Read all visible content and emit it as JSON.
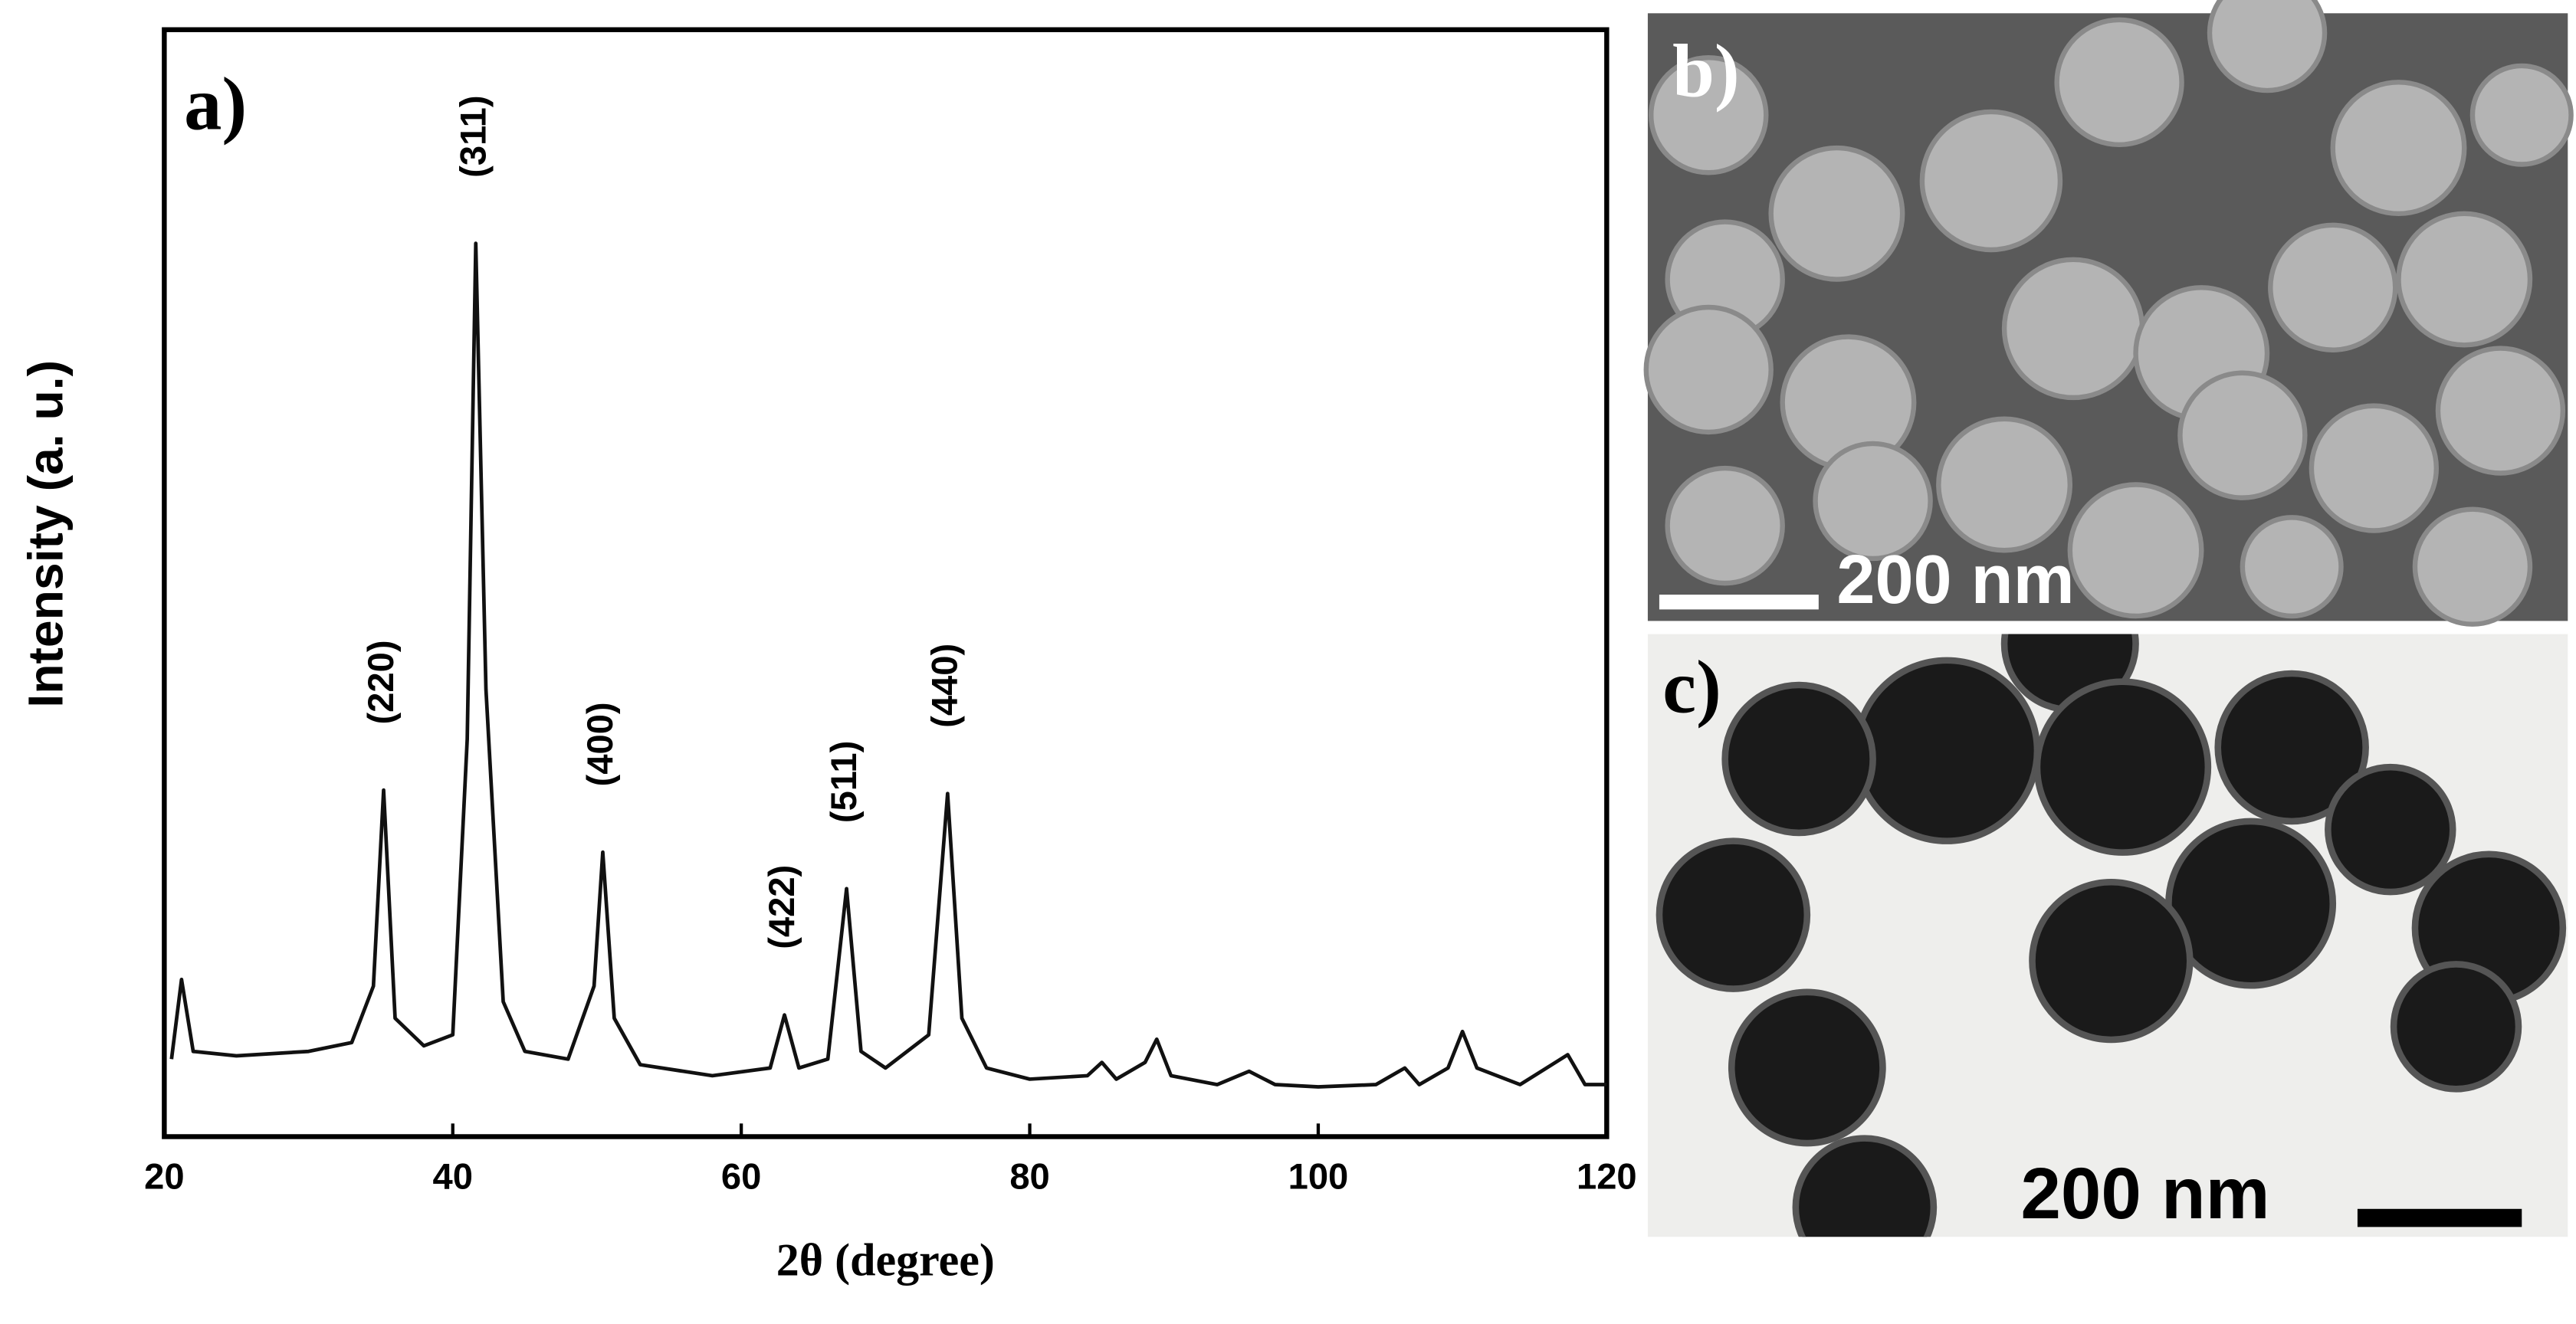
{
  "chart_data": {
    "type": "line",
    "panel_label": "a)",
    "x_label": "2θ (degree)",
    "y_label": "Intensity (a. u.)",
    "color": "#111111",
    "x": [
      20.5,
      21.2,
      22,
      25,
      30,
      33,
      34.5,
      35.2,
      36,
      38,
      40,
      41.0,
      41.6,
      42.3,
      43.5,
      45,
      48,
      49.8,
      50.4,
      51.2,
      53,
      58,
      62,
      63.0,
      64,
      66,
      67.3,
      68.3,
      70,
      73,
      74.3,
      75.3,
      77,
      80,
      84,
      85,
      86,
      88,
      88.8,
      89.8,
      93,
      95.2,
      97,
      100,
      104,
      106,
      107,
      109,
      110,
      111,
      114,
      117.3,
      118.5,
      120
    ],
    "values": [
      7.0,
      14.2,
      7.7,
      7.3,
      7.7,
      8.5,
      13.6,
      31.3,
      10.7,
      8.2,
      9.2,
      35.9,
      80.7,
      40.4,
      12.2,
      7.7,
      7.0,
      13.6,
      25.7,
      10.7,
      6.5,
      5.5,
      6.2,
      11.0,
      6.2,
      7.0,
      22.4,
      7.7,
      6.2,
      9.2,
      31.0,
      10.7,
      6.2,
      5.2,
      5.5,
      6.7,
      5.2,
      6.7,
      8.8,
      5.5,
      4.7,
      5.9,
      4.7,
      4.5,
      4.7,
      6.2,
      4.7,
      6.2,
      9.5,
      6.2,
      4.7,
      7.4,
      4.7,
      4.7
    ],
    "xlim": [
      20,
      120
    ],
    "xticks": [
      20,
      40,
      60,
      80,
      100,
      120
    ],
    "ylim": [
      0,
      100
    ],
    "annotations": [
      {
        "text": "(220)",
        "x": 35.2
      },
      {
        "text": "(311)",
        "x": 41.6
      },
      {
        "text": "(400)",
        "x": 50.4
      },
      {
        "text": "(422)",
        "x": 63.0
      },
      {
        "text": "(511)",
        "x": 67.3
      },
      {
        "text": "(440)",
        "x": 74.3
      }
    ]
  },
  "panels": [
    {
      "label": "b)",
      "scale_bar": "200 nm"
    },
    {
      "label": "c)",
      "scale_bar": "200 nm"
    }
  ]
}
